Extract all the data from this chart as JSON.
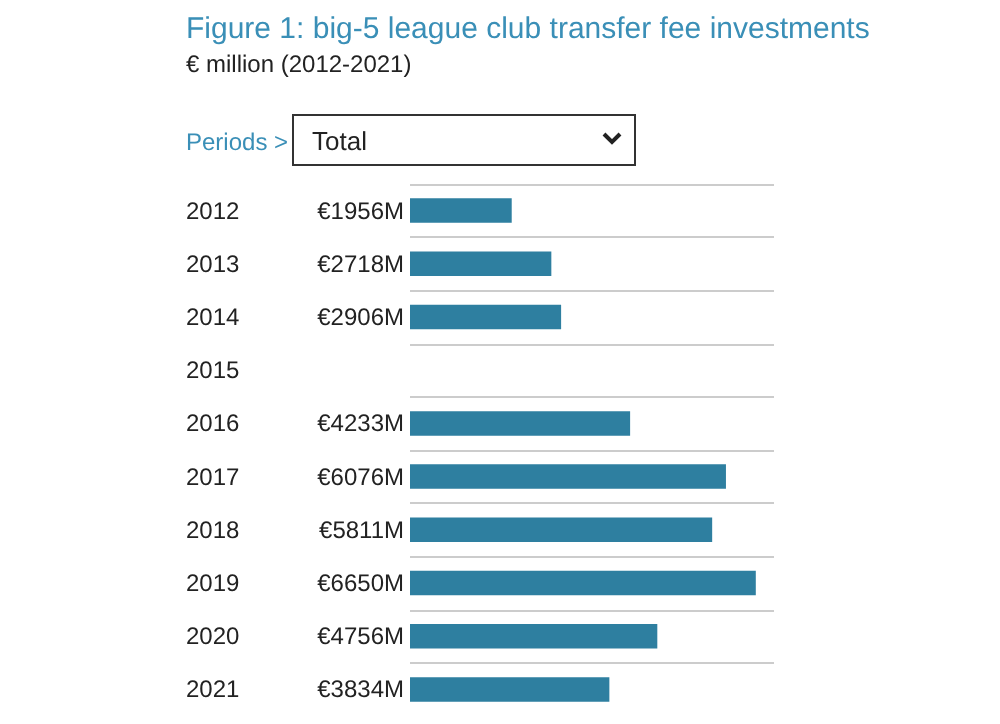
{
  "chart_data": {
    "type": "bar",
    "orientation": "horizontal",
    "title": "Figure 1: big-5 league club transfer fee investments",
    "subtitle": "€ million (2012-2021)",
    "annotations": [
      "Periods >",
      "Total"
    ],
    "categories": [
      "2012",
      "2013",
      "2014",
      "2015",
      "2016",
      "2017",
      "2018",
      "2019",
      "2020",
      "2021"
    ],
    "values": [
      1956,
      2718,
      2906,
      null,
      4233,
      6076,
      5811,
      6650,
      4756,
      3834
    ],
    "value_labels": [
      "€1956M",
      "€2718M",
      "€2906M",
      null,
      "€4233M",
      "€6076M",
      "€5811M",
      "€6650M",
      "€4756M",
      "€3834M"
    ],
    "color": "#2e7fa0",
    "tick_labels": "y",
    "grid": "y"
  }
}
